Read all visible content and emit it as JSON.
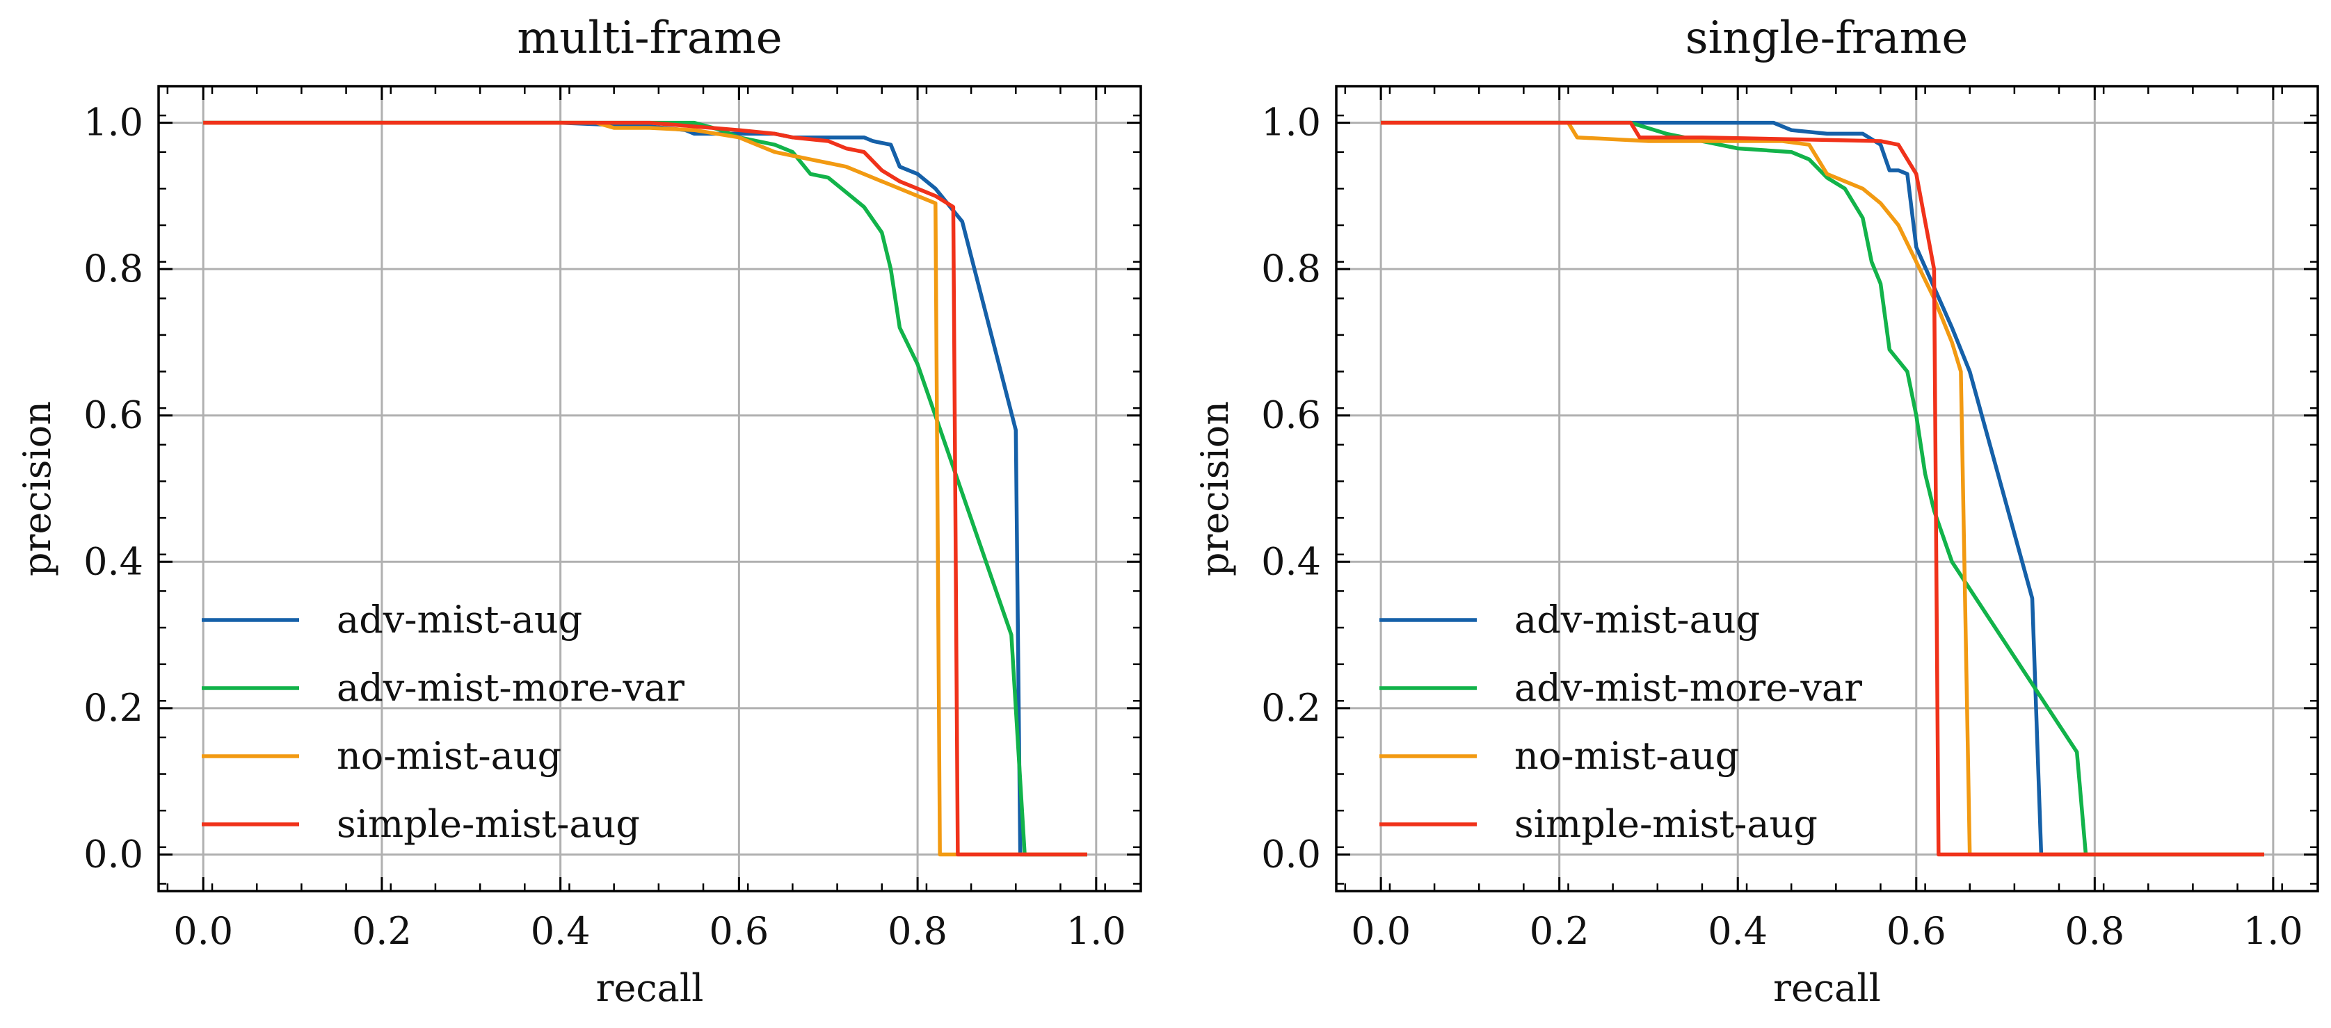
{
  "chart_data": [
    {
      "type": "line",
      "title": "multi-frame",
      "xlabel": "recall",
      "ylabel": "precision",
      "xlim": [
        -0.05,
        1.05
      ],
      "ylim": [
        -0.05,
        1.05
      ],
      "xticks": [
        "0.0",
        "0.2",
        "0.4",
        "0.6",
        "0.8",
        "1.0"
      ],
      "yticks": [
        "0.0",
        "0.2",
        "0.4",
        "0.6",
        "0.8",
        "1.0"
      ],
      "grid": true,
      "legend_position": "lower-left",
      "series": [
        {
          "name": "adv-mist-aug",
          "color": "#1560a8",
          "points": [
            [
              0,
              1.0
            ],
            [
              0.4,
              1.0
            ],
            [
              0.5,
              0.995
            ],
            [
              0.54,
              0.99
            ],
            [
              0.55,
              0.985
            ],
            [
              0.6,
              0.985
            ],
            [
              0.64,
              0.985
            ],
            [
              0.66,
              0.98
            ],
            [
              0.7,
              0.98
            ],
            [
              0.74,
              0.98
            ],
            [
              0.75,
              0.975
            ],
            [
              0.77,
              0.97
            ],
            [
              0.78,
              0.94
            ],
            [
              0.8,
              0.93
            ],
            [
              0.82,
              0.91
            ],
            [
              0.84,
              0.88
            ],
            [
              0.85,
              0.865
            ],
            [
              0.91,
              0.58
            ],
            [
              0.915,
              0.0
            ],
            [
              0.99,
              0.0
            ]
          ]
        },
        {
          "name": "adv-mist-more-var",
          "color": "#12b34a",
          "points": [
            [
              0,
              1.0
            ],
            [
              0.45,
              1.0
            ],
            [
              0.55,
              1.0
            ],
            [
              0.58,
              0.99
            ],
            [
              0.6,
              0.98
            ],
            [
              0.64,
              0.97
            ],
            [
              0.66,
              0.96
            ],
            [
              0.68,
              0.93
            ],
            [
              0.7,
              0.925
            ],
            [
              0.72,
              0.905
            ],
            [
              0.74,
              0.885
            ],
            [
              0.76,
              0.85
            ],
            [
              0.77,
              0.8
            ],
            [
              0.78,
              0.72
            ],
            [
              0.8,
              0.67
            ],
            [
              0.905,
              0.3
            ],
            [
              0.92,
              0.0
            ],
            [
              0.99,
              0.0
            ]
          ]
        },
        {
          "name": "no-mist-aug",
          "color": "#f29a12",
          "points": [
            [
              0,
              1.0
            ],
            [
              0.44,
              1.0
            ],
            [
              0.46,
              0.993
            ],
            [
              0.5,
              0.993
            ],
            [
              0.55,
              0.99
            ],
            [
              0.6,
              0.98
            ],
            [
              0.62,
              0.97
            ],
            [
              0.64,
              0.96
            ],
            [
              0.66,
              0.955
            ],
            [
              0.68,
              0.95
            ],
            [
              0.7,
              0.945
            ],
            [
              0.72,
              0.94
            ],
            [
              0.76,
              0.92
            ],
            [
              0.8,
              0.9
            ],
            [
              0.82,
              0.89
            ],
            [
              0.825,
              0.0
            ],
            [
              0.99,
              0.0
            ]
          ]
        },
        {
          "name": "simple-mist-aug",
          "color": "#f0321a",
          "points": [
            [
              0,
              1.0
            ],
            [
              0.5,
              1.0
            ],
            [
              0.6,
              0.99
            ],
            [
              0.64,
              0.985
            ],
            [
              0.66,
              0.98
            ],
            [
              0.7,
              0.975
            ],
            [
              0.72,
              0.965
            ],
            [
              0.74,
              0.96
            ],
            [
              0.76,
              0.935
            ],
            [
              0.78,
              0.92
            ],
            [
              0.8,
              0.91
            ],
            [
              0.82,
              0.9
            ],
            [
              0.84,
              0.885
            ],
            [
              0.845,
              0.0
            ],
            [
              0.99,
              0.0
            ]
          ]
        }
      ]
    },
    {
      "type": "line",
      "title": "single-frame",
      "xlabel": "recall",
      "ylabel": "precision",
      "xlim": [
        -0.05,
        1.05
      ],
      "ylim": [
        -0.05,
        1.05
      ],
      "xticks": [
        "0.0",
        "0.2",
        "0.4",
        "0.6",
        "0.8",
        "1.0"
      ],
      "yticks": [
        "0.0",
        "0.2",
        "0.4",
        "0.6",
        "0.8",
        "1.0"
      ],
      "grid": true,
      "legend_position": "lower-left",
      "series": [
        {
          "name": "adv-mist-aug",
          "color": "#1560a8",
          "points": [
            [
              0,
              1.0
            ],
            [
              0.3,
              1.0
            ],
            [
              0.44,
              1.0
            ],
            [
              0.46,
              0.99
            ],
            [
              0.5,
              0.985
            ],
            [
              0.54,
              0.985
            ],
            [
              0.56,
              0.97
            ],
            [
              0.57,
              0.935
            ],
            [
              0.58,
              0.935
            ],
            [
              0.59,
              0.93
            ],
            [
              0.6,
              0.83
            ],
            [
              0.64,
              0.72
            ],
            [
              0.66,
              0.66
            ],
            [
              0.73,
              0.35
            ],
            [
              0.74,
              0.0
            ],
            [
              0.99,
              0.0
            ]
          ]
        },
        {
          "name": "adv-mist-more-var",
          "color": "#12b34a",
          "points": [
            [
              0,
              1.0
            ],
            [
              0.28,
              1.0
            ],
            [
              0.32,
              0.985
            ],
            [
              0.36,
              0.975
            ],
            [
              0.4,
              0.965
            ],
            [
              0.46,
              0.96
            ],
            [
              0.48,
              0.95
            ],
            [
              0.5,
              0.925
            ],
            [
              0.52,
              0.91
            ],
            [
              0.54,
              0.87
            ],
            [
              0.55,
              0.81
            ],
            [
              0.56,
              0.78
            ],
            [
              0.57,
              0.69
            ],
            [
              0.59,
              0.66
            ],
            [
              0.6,
              0.6
            ],
            [
              0.61,
              0.52
            ],
            [
              0.62,
              0.47
            ],
            [
              0.64,
              0.4
            ],
            [
              0.78,
              0.14
            ],
            [
              0.79,
              0.0
            ],
            [
              0.99,
              0.0
            ]
          ]
        },
        {
          "name": "no-mist-aug",
          "color": "#f29a12",
          "points": [
            [
              0,
              1.0
            ],
            [
              0.21,
              1.0
            ],
            [
              0.22,
              0.98
            ],
            [
              0.3,
              0.975
            ],
            [
              0.45,
              0.975
            ],
            [
              0.48,
              0.97
            ],
            [
              0.5,
              0.93
            ],
            [
              0.54,
              0.91
            ],
            [
              0.56,
              0.89
            ],
            [
              0.58,
              0.86
            ],
            [
              0.6,
              0.81
            ],
            [
              0.62,
              0.76
            ],
            [
              0.64,
              0.7
            ],
            [
              0.65,
              0.66
            ],
            [
              0.66,
              0.0
            ],
            [
              0.99,
              0.0
            ]
          ]
        },
        {
          "name": "simple-mist-aug",
          "color": "#f0321a",
          "points": [
            [
              0,
              1.0
            ],
            [
              0.28,
              1.0
            ],
            [
              0.29,
              0.98
            ],
            [
              0.36,
              0.98
            ],
            [
              0.56,
              0.975
            ],
            [
              0.58,
              0.97
            ],
            [
              0.6,
              0.93
            ],
            [
              0.62,
              0.8
            ],
            [
              0.625,
              0.0
            ],
            [
              0.99,
              0.0
            ]
          ]
        }
      ]
    }
  ]
}
